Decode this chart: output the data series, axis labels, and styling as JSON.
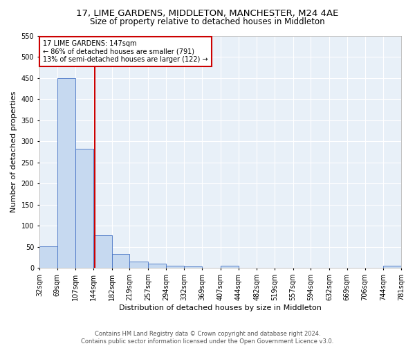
{
  "title": "17, LIME GARDENS, MIDDLETON, MANCHESTER, M24 4AE",
  "subtitle": "Size of property relative to detached houses in Middleton",
  "xlabel": "Distribution of detached houses by size in Middleton",
  "ylabel": "Number of detached properties",
  "bin_edges": [
    32,
    69,
    107,
    144,
    182,
    219,
    257,
    294,
    332,
    369,
    407,
    444,
    482,
    519,
    557,
    594,
    632,
    669,
    706,
    744,
    781
  ],
  "bin_labels": [
    "32sqm",
    "69sqm",
    "107sqm",
    "144sqm",
    "182sqm",
    "219sqm",
    "257sqm",
    "294sqm",
    "332sqm",
    "369sqm",
    "407sqm",
    "444sqm",
    "482sqm",
    "519sqm",
    "557sqm",
    "594sqm",
    "632sqm",
    "669sqm",
    "706sqm",
    "744sqm",
    "781sqm"
  ],
  "counts": [
    52,
    450,
    282,
    78,
    33,
    15,
    10,
    5,
    4,
    0,
    6,
    0,
    0,
    0,
    0,
    0,
    0,
    0,
    0,
    5,
    0
  ],
  "bar_color": "#c6d9f0",
  "bar_edge_color": "#4472c4",
  "vline_x": 147,
  "vline_color": "#cc0000",
  "annotation_line1": "17 LIME GARDENS: 147sqm",
  "annotation_line2": "← 86% of detached houses are smaller (791)",
  "annotation_line3": "13% of semi-detached houses are larger (122) →",
  "annotation_box_color": "white",
  "annotation_box_edge": "#cc0000",
  "ylim": [
    0,
    550
  ],
  "yticks": [
    0,
    50,
    100,
    150,
    200,
    250,
    300,
    350,
    400,
    450,
    500,
    550
  ],
  "background_color": "#e8f0f8",
  "footer_line1": "Contains HM Land Registry data © Crown copyright and database right 2024.",
  "footer_line2": "Contains public sector information licensed under the Open Government Licence v3.0.",
  "title_fontsize": 9.5,
  "subtitle_fontsize": 8.5,
  "xlabel_fontsize": 8,
  "ylabel_fontsize": 8,
  "tick_fontsize": 7,
  "annot_fontsize": 7,
  "footer_fontsize": 6
}
